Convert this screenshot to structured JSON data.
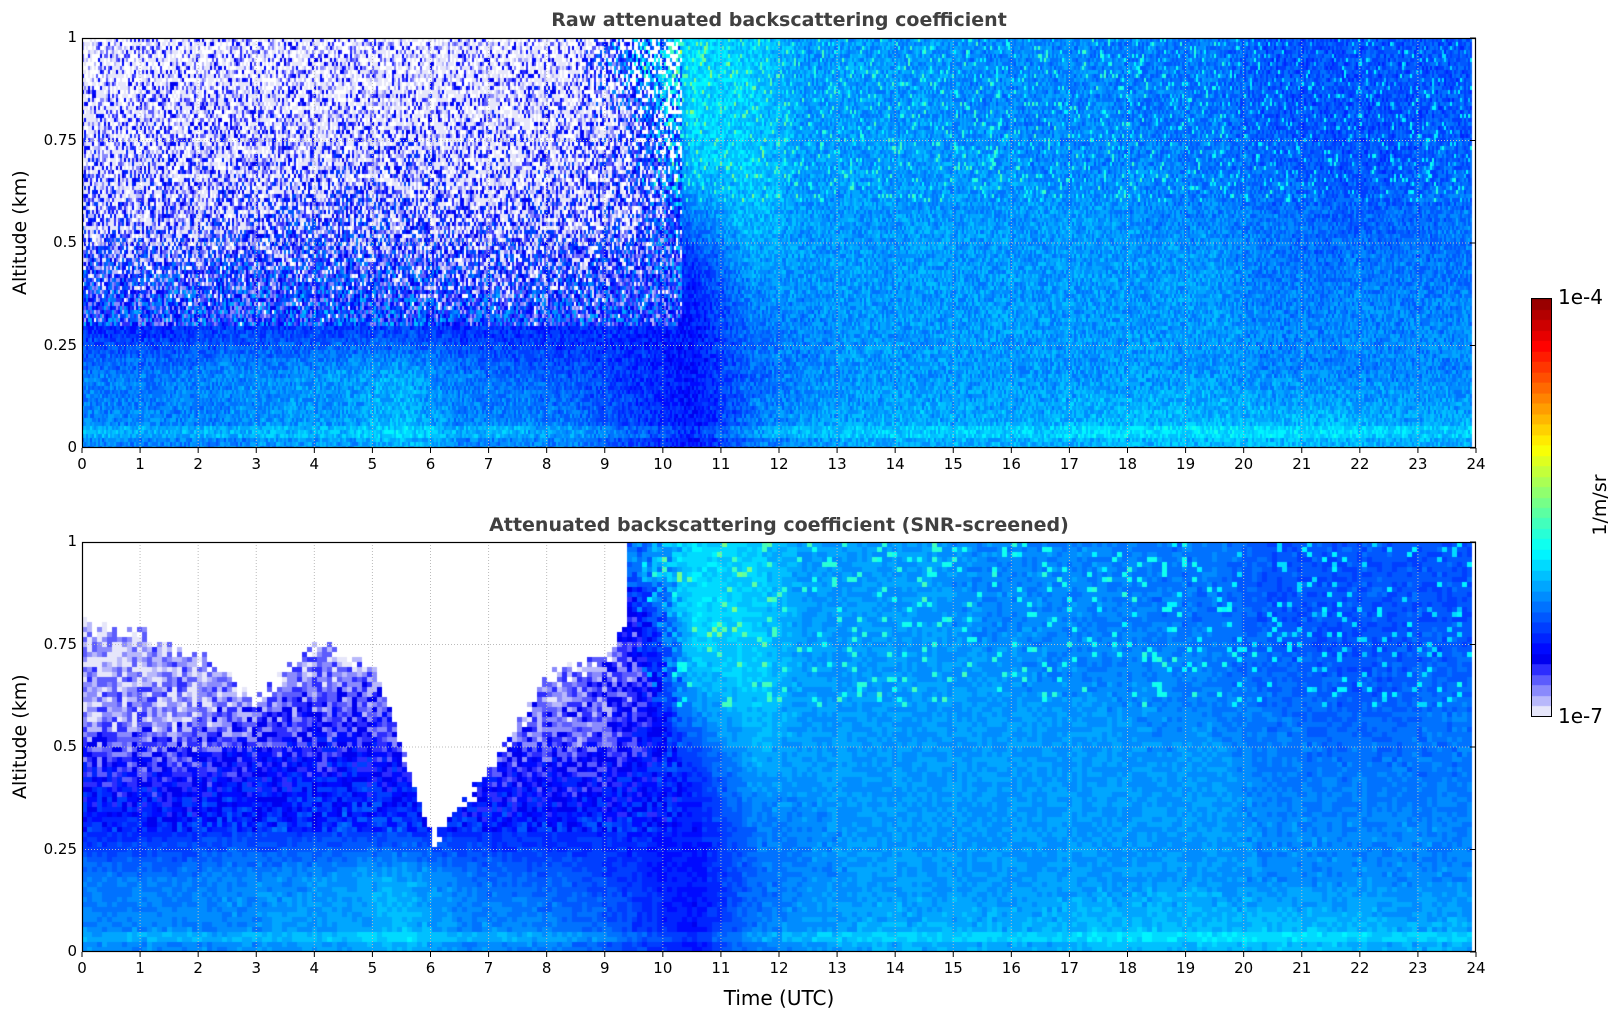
{
  "chart_data": [
    {
      "type": "heatmap",
      "title": "Raw attenuated backscattering coefficient",
      "xlabel": "",
      "ylabel": "Altitude (km)",
      "xlim": [
        0,
        24
      ],
      "ylim": [
        0,
        1
      ],
      "xticks": [
        "0",
        "1",
        "2",
        "3",
        "4",
        "5",
        "6",
        "7",
        "8",
        "9",
        "10",
        "11",
        "12",
        "13",
        "14",
        "15",
        "16",
        "17",
        "18",
        "19",
        "20",
        "21",
        "22",
        "23",
        "24"
      ],
      "yticks": [
        "0",
        "0.25",
        "0.5",
        "0.75",
        "1"
      ],
      "grid": true,
      "altitude_bins_km": [
        0.0625,
        0.1875,
        0.3125,
        0.4375,
        0.5625,
        0.6875,
        0.8125,
        0.9375
      ],
      "hours": [
        0.5,
        1.5,
        2.5,
        3.5,
        4.5,
        5.5,
        6.5,
        7.5,
        8.5,
        9.5,
        10.5,
        11.5,
        12.5,
        13.5,
        14.5,
        15.5,
        16.5,
        17.5,
        18.5,
        19.5,
        20.5,
        21.5,
        22.5,
        23.5
      ],
      "log10_values_by_altitude": [
        [
          -6.15,
          -6.15,
          -6.15,
          -6.1,
          -6.1,
          -6.0,
          -6.15,
          -6.15,
          -6.2,
          -6.35,
          -6.5,
          -6.2,
          -6.1,
          -6.05,
          -6.05,
          -6.05,
          -6.05,
          -6.0,
          -6.0,
          -6.0,
          -6.0,
          -6.0,
          -6.05,
          -6.05
        ],
        [
          -6.2,
          -6.2,
          -6.15,
          -6.15,
          -6.1,
          -6.05,
          -6.2,
          -6.25,
          -6.3,
          -6.4,
          -6.5,
          -6.25,
          -6.15,
          -6.1,
          -6.1,
          -6.1,
          -6.1,
          -6.1,
          -6.1,
          -6.1,
          -6.15,
          -6.15,
          -6.15,
          -6.15
        ],
        [
          -6.45,
          -6.45,
          -6.4,
          -6.4,
          -6.4,
          -6.4,
          -6.45,
          -6.45,
          -6.45,
          -6.45,
          -6.5,
          -6.2,
          -6.15,
          -6.1,
          -6.1,
          -6.1,
          -6.1,
          -6.1,
          -6.1,
          -6.1,
          -6.15,
          -6.15,
          -6.15,
          -6.15
        ],
        [
          -6.6,
          -6.6,
          -6.55,
          -6.55,
          -6.5,
          -6.55,
          -6.6,
          -6.6,
          -6.6,
          -6.55,
          -6.4,
          -6.1,
          -6.1,
          -6.1,
          -6.1,
          -6.1,
          -6.1,
          -6.1,
          -6.1,
          -6.1,
          -6.2,
          -6.2,
          -6.2,
          -6.2
        ],
        [
          -6.8,
          -6.8,
          -6.75,
          -6.7,
          -6.65,
          -6.7,
          -6.8,
          -6.75,
          -6.75,
          -6.65,
          -6.2,
          -6.0,
          -6.1,
          -6.1,
          -6.1,
          -6.1,
          -6.1,
          -6.1,
          -6.15,
          -6.15,
          -6.2,
          -6.25,
          -6.25,
          -6.2
        ],
        [
          -6.85,
          -6.85,
          -6.85,
          -6.8,
          -6.8,
          -6.8,
          -6.85,
          -6.85,
          -6.8,
          -6.7,
          -6.0,
          -5.95,
          -6.1,
          -6.1,
          -6.1,
          -6.1,
          -6.15,
          -6.15,
          -6.15,
          -6.2,
          -6.25,
          -6.3,
          -6.3,
          -6.25
        ],
        [
          -6.9,
          -6.9,
          -6.9,
          -6.9,
          -6.9,
          -6.9,
          -6.9,
          -6.9,
          -6.85,
          -6.6,
          -5.9,
          -5.95,
          -6.1,
          -6.1,
          -6.1,
          -6.15,
          -6.15,
          -6.15,
          -6.2,
          -6.2,
          -6.3,
          -6.3,
          -6.3,
          -6.3
        ],
        [
          -6.95,
          -6.95,
          -6.95,
          -6.95,
          -6.95,
          -6.95,
          -6.95,
          -6.95,
          -6.9,
          -6.2,
          -5.9,
          -5.95,
          -6.1,
          -6.1,
          -6.1,
          -6.15,
          -6.15,
          -6.15,
          -6.2,
          -6.2,
          -6.3,
          -6.3,
          -6.3,
          -6.3
        ]
      ]
    },
    {
      "type": "heatmap",
      "title": "Attenuated backscattering coefficient (SNR-screened)",
      "xlabel": "Time (UTC)",
      "ylabel": "Altitude (km)",
      "xlim": [
        0,
        24
      ],
      "ylim": [
        0,
        1
      ],
      "xticks": [
        "0",
        "1",
        "2",
        "3",
        "4",
        "5",
        "6",
        "7",
        "8",
        "9",
        "10",
        "11",
        "12",
        "13",
        "14",
        "15",
        "16",
        "17",
        "18",
        "19",
        "20",
        "21",
        "22",
        "23",
        "24"
      ],
      "yticks": [
        "0",
        "0.25",
        "0.5",
        "0.75",
        "1"
      ],
      "grid": true,
      "screened_above_km_by_hour": [
        0.8,
        0.78,
        0.72,
        0.62,
        0.76,
        0.7,
        0.28,
        0.45,
        0.68,
        0.72,
        1,
        1,
        1,
        1,
        1,
        1,
        1,
        1,
        1,
        1,
        1,
        1,
        1,
        1
      ]
    }
  ],
  "colorbar": {
    "label": "1/m/sr",
    "min_label": "1e-7",
    "max_label": "1e-4",
    "log10_range": [
      -7,
      -4
    ],
    "colormap": "jet",
    "low_end_color": "#e6e6fa"
  }
}
